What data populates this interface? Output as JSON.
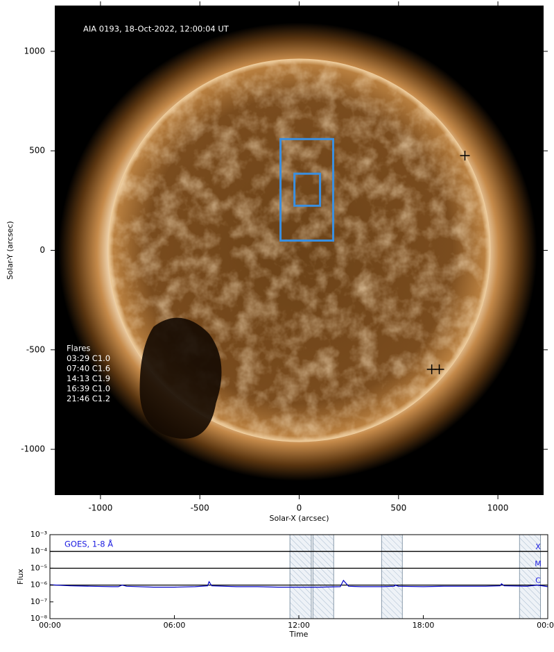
{
  "chart_data": [
    {
      "type": "image",
      "title": "AIA 0193, 18-Oct-2022, 12:00:04 UT",
      "xlabel": "Solar-X (arcsec)",
      "ylabel": "Solar-Y (arcsec)",
      "xlim": [
        -1230,
        1230
      ],
      "ylim": [
        -1230,
        1230
      ],
      "xticks": [
        -1000,
        -500,
        0,
        500,
        1000
      ],
      "yticks": [
        -1000,
        -500,
        0,
        500,
        1000
      ],
      "flares_title": "Flares",
      "flares": [
        "03:29 C1.0",
        "07:40 C1.6",
        "14:13 C1.9",
        "16:39 C1.0",
        "21:46 C1.2"
      ],
      "boxes": [
        {
          "x": [
            -94,
            171
          ],
          "y": [
            49,
            559
          ],
          "color": "#3a8fe0"
        },
        {
          "x": [
            -24,
            105
          ],
          "y": [
            224,
            385
          ],
          "color": "#3a8fe0"
        }
      ],
      "markers": {
        "x": [
          834,
          667,
          705
        ],
        "y": [
          476,
          -598,
          -598
        ],
        "color": "#000000"
      }
    },
    {
      "type": "line",
      "label": "GOES, 1-8 Å",
      "xlabel": "Time",
      "ylabel": "Flux",
      "xlim": [
        0,
        24
      ],
      "xticks": [
        {
          "value": 0,
          "label": "00:00"
        },
        {
          "value": 6,
          "label": "06:00"
        },
        {
          "value": 12,
          "label": "12:00"
        },
        {
          "value": 18,
          "label": "18:00"
        },
        {
          "value": 24,
          "label": "00:00"
        }
      ],
      "ylim": [
        1e-08,
        0.001
      ],
      "log_y": true,
      "yticks": [
        {
          "value": 1e-08,
          "label": "10⁻⁸"
        },
        {
          "value": 1e-07,
          "label": "10⁻⁷"
        },
        {
          "value": 1e-06,
          "label": "10⁻⁶"
        },
        {
          "value": 1e-05,
          "label": "10⁻⁵"
        },
        {
          "value": 0.0001,
          "label": "10⁻⁴"
        },
        {
          "value": 0.001,
          "label": "10⁻³"
        }
      ],
      "levels": [
        {
          "value": 0.0001,
          "label": "X"
        },
        {
          "value": 1e-05,
          "label": "M"
        },
        {
          "value": 1e-06,
          "label": "C"
        }
      ],
      "spans": [
        [
          11.57,
          12.6
        ],
        [
          12.68,
          13.68
        ],
        [
          15.99,
          16.99
        ],
        [
          22.64,
          23.65
        ]
      ],
      "series": [
        {
          "color": "#0000c8",
          "x": [
            0,
            1,
            2,
            3,
            3.3,
            3.48,
            3.7,
            5,
            6,
            7,
            7.6,
            7.67,
            7.8,
            9,
            10,
            11,
            12,
            13,
            14,
            14.15,
            14.22,
            14.4,
            15,
            16,
            16.6,
            16.65,
            16.8,
            18,
            19,
            20,
            21,
            21.7,
            21.77,
            21.9,
            23,
            23.5,
            24
          ],
          "values": [
            1.05e-06,
            9e-07,
            8.5e-07,
            8e-07,
            8e-07,
            1e-06,
            8.5e-07,
            7.5e-07,
            7.5e-07,
            8e-07,
            9e-07,
            1.6e-06,
            9e-07,
            8e-07,
            8e-07,
            7.5e-07,
            7.5e-07,
            7.5e-07,
            8e-07,
            1.9e-06,
            1.5e-06,
            8.5e-07,
            8e-07,
            8e-07,
            8.5e-07,
            1e-06,
            8.5e-07,
            8e-07,
            8.5e-07,
            8.5e-07,
            8.5e-07,
            9e-07,
            1.2e-06,
            9e-07,
            8.5e-07,
            1e-06,
            8e-07
          ]
        }
      ]
    }
  ]
}
